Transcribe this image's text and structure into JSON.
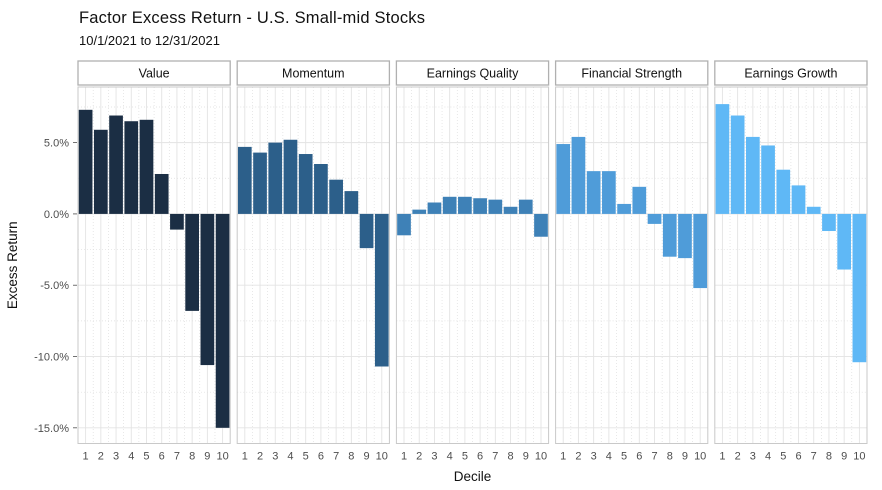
{
  "chart_data": {
    "type": "bar",
    "title": "Factor Excess Return - U.S. Small-mid Stocks",
    "subtitle": "10/1/2021 to 12/31/2021",
    "xlabel": "Decile",
    "ylabel": "Excess Return",
    "categories": [
      "1",
      "2",
      "3",
      "4",
      "5",
      "6",
      "7",
      "8",
      "9",
      "10"
    ],
    "ylim": [
      -16.1,
      8.9
    ],
    "grid": true,
    "legend": "none",
    "y_ticks": [
      {
        "value": 5,
        "label": "5.0%"
      },
      {
        "value": 0,
        "label": "0.0%"
      },
      {
        "value": -5,
        "label": "-5.0%"
      },
      {
        "value": -10,
        "label": "-10.0%"
      },
      {
        "value": -15,
        "label": "-15.0%"
      }
    ],
    "series": [
      {
        "name": "Value",
        "color": "#1b2e44",
        "values": [
          7.3,
          5.9,
          6.9,
          6.5,
          6.6,
          2.8,
          -1.1,
          -6.8,
          -10.6,
          -15.0
        ]
      },
      {
        "name": "Momentum",
        "color": "#2c5f8a",
        "values": [
          4.7,
          4.3,
          5.0,
          5.2,
          4.2,
          3.5,
          2.4,
          1.6,
          -2.4,
          -10.7
        ]
      },
      {
        "name": "Earnings Quality",
        "color": "#3e81b7",
        "values": [
          -1.5,
          0.3,
          0.8,
          1.2,
          1.2,
          1.1,
          1.0,
          0.5,
          1.0,
          -1.6
        ]
      },
      {
        "name": "Financial Strength",
        "color": "#4f9cd9",
        "values": [
          4.9,
          5.4,
          3.0,
          3.0,
          0.7,
          1.9,
          -0.7,
          -3.0,
          -3.1,
          -5.2
        ]
      },
      {
        "name": "Earnings Growth",
        "color": "#5fb8f6",
        "values": [
          7.7,
          6.9,
          5.4,
          4.8,
          3.1,
          2.0,
          0.5,
          -1.2,
          -3.9,
          -10.4
        ]
      }
    ],
    "colors": {
      "grid_major": "#e3e3e3",
      "grid_minor": "#dedede",
      "panel_border": "#c9c9c9",
      "strip_border": "#b0b0b0",
      "strip_fill": "#ffffff",
      "axis_text": "#4d4d4d",
      "axis_title": "#111111",
      "strip_text": "#111111"
    }
  }
}
